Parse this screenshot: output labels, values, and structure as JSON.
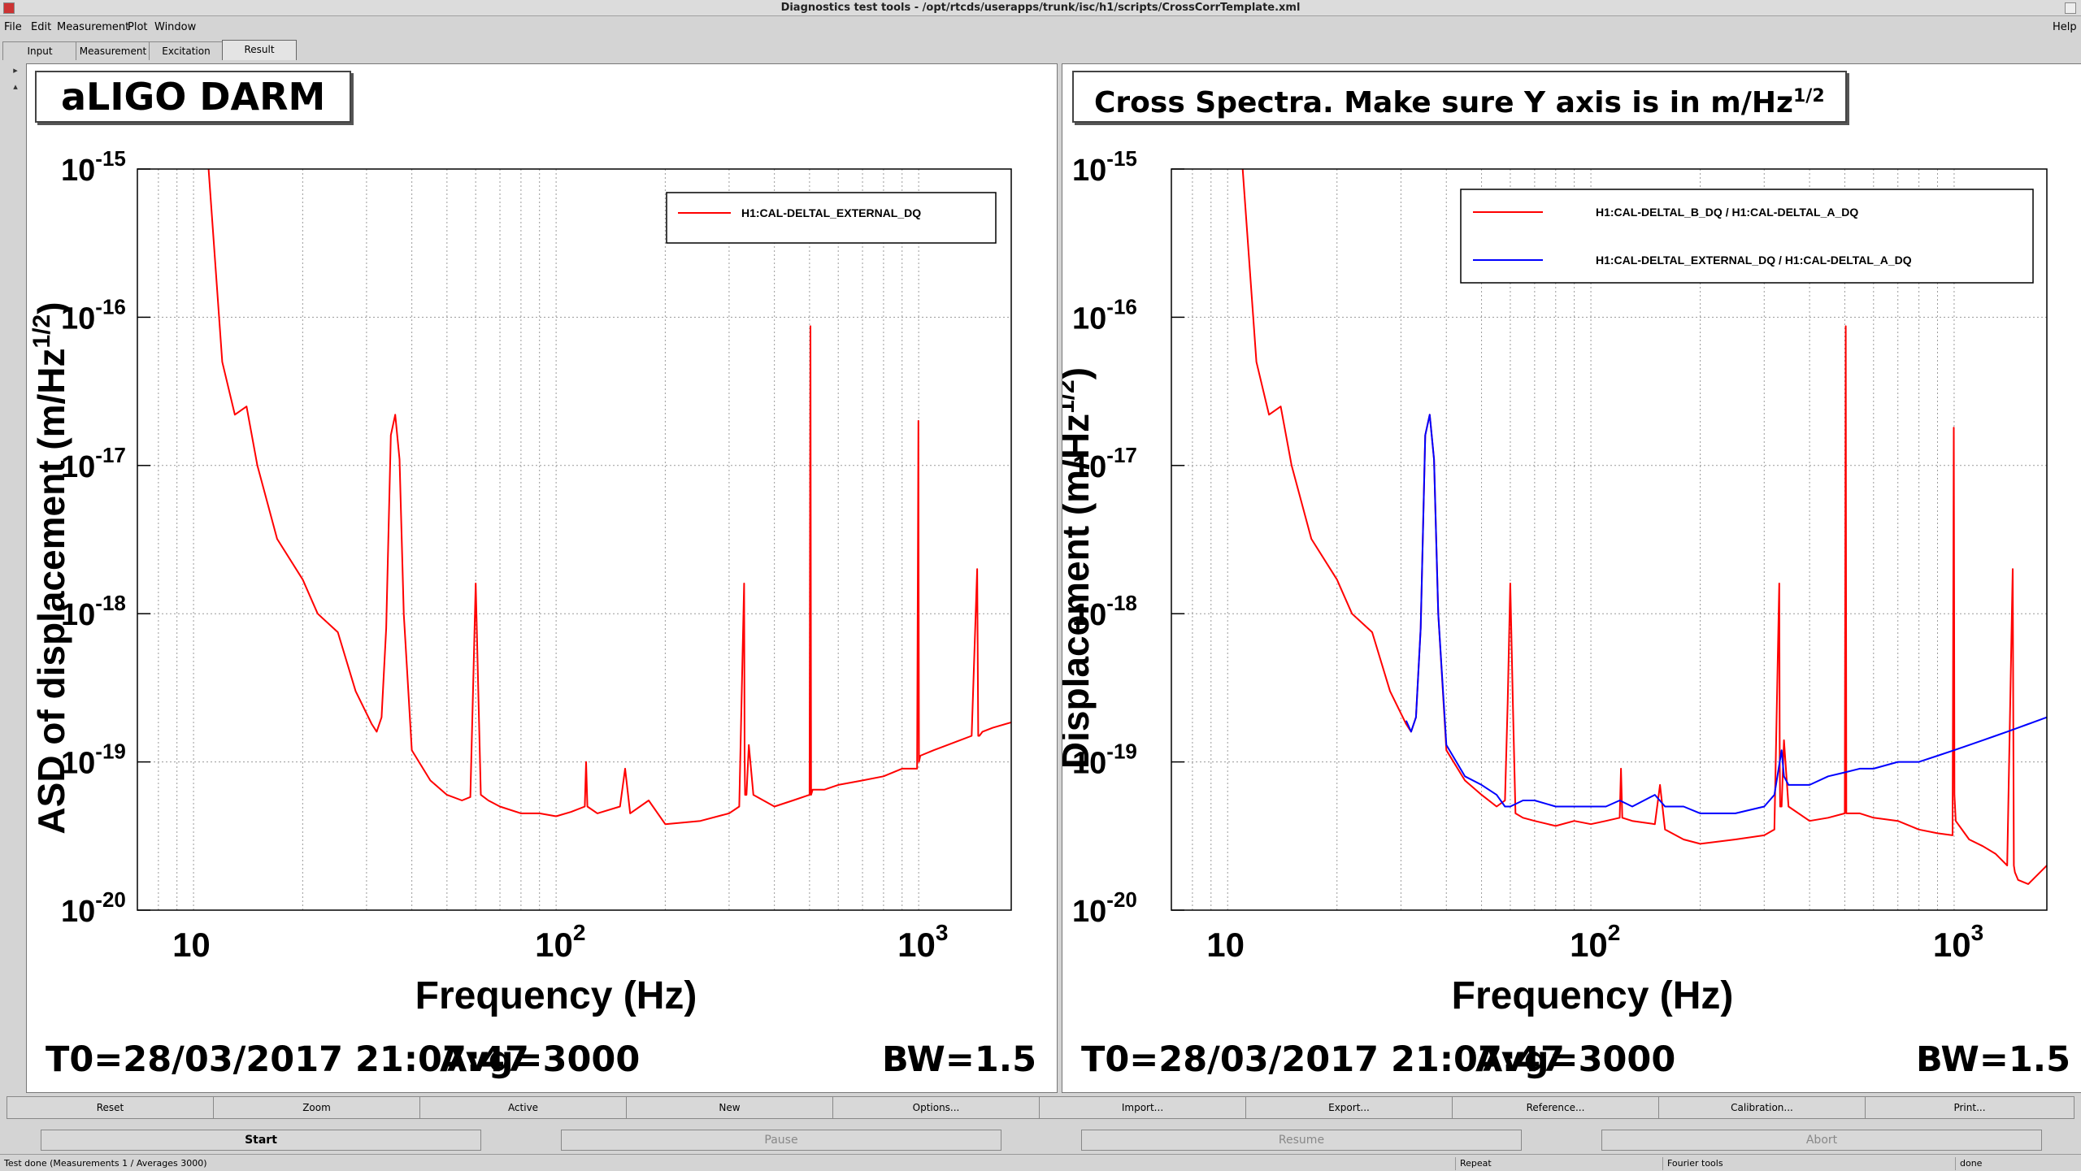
{
  "window": {
    "title": "Diagnostics test tools - /opt/rtcds/userapps/trunk/isc/h1/scripts/CrossCorrTemplate.xml"
  },
  "menu": {
    "file": "File",
    "edit": "Edit",
    "measurement": "Measurement",
    "plot": "Plot",
    "window": "Window",
    "help": "Help"
  },
  "tabs": {
    "input": "Input",
    "measurement": "Measurement",
    "excitation": "Excitation",
    "result": "Result"
  },
  "left_panel": {
    "title": "aLIGO DARM",
    "ylabel": "ASD of displacement (m/Hz",
    "ylabel_sup": "1/2",
    "ylabel_close": ")",
    "legend1": "H1:CAL-DELTAL_EXTERNAL_DQ",
    "footer_t0": "T0=28/03/2017 21:07:47",
    "footer_avg": "Avg=3000",
    "footer_bw": "BW=1.5"
  },
  "right_panel": {
    "title": "Cross Spectra. Make sure Y axis is in m/Hz",
    "title_sup": "1/2",
    "ylabel": "Displacement (m/Hz",
    "ylabel_sup": "1/2",
    "ylabel_close": ")",
    "legend1": "H1:CAL-DELTAL_B_DQ / H1:CAL-DELTAL_A_DQ",
    "legend2": "H1:CAL-DELTAL_EXTERNAL_DQ / H1:CAL-DELTAL_A_DQ",
    "footer_t0": "T0=28/03/2017 21:07:47",
    "footer_avg": "Avg=3000",
    "footer_bw": "BW=1.5"
  },
  "axes": {
    "xlabel": "Frequency (Hz)",
    "xticks": [
      {
        "base": "10",
        "exp": ""
      },
      {
        "base": "10",
        "exp": "2"
      },
      {
        "base": "10",
        "exp": "3"
      }
    ],
    "yticks": [
      {
        "base": "10",
        "exp": "-15"
      },
      {
        "base": "10",
        "exp": "-16"
      },
      {
        "base": "10",
        "exp": "-17"
      },
      {
        "base": "10",
        "exp": "-18"
      },
      {
        "base": "10",
        "exp": "-19"
      },
      {
        "base": "10",
        "exp": "-20"
      }
    ]
  },
  "buttons_row1": {
    "reset": "Reset",
    "zoom": "Zoom",
    "active": "Active",
    "new": "New",
    "options": "Options...",
    "import": "Import...",
    "export": "Export...",
    "reference": "Reference...",
    "calibration": "Calibration...",
    "print": "Print..."
  },
  "buttons_row2": {
    "start": "Start",
    "pause": "Pause",
    "resume": "Resume",
    "abort": "Abort"
  },
  "status": {
    "main": "Test done (Measurements 1 / Averages 3000)",
    "repeat": "Repeat",
    "fourier": "Fourier tools",
    "state": "done"
  },
  "colors": {
    "red": "#ff0000",
    "blue": "#0000ff"
  },
  "chart_data": [
    {
      "type": "line",
      "title": "aLIGO DARM",
      "xlabel": "Frequency (Hz)",
      "ylabel": "ASD of displacement (m/Hz^1/2)",
      "xscale": "log",
      "yscale": "log",
      "xlim": [
        7,
        1800
      ],
      "ylim": [
        1e-20,
        1e-15
      ],
      "grid": true,
      "legend": "top-right",
      "series": [
        {
          "name": "H1:CAL-DELTAL_EXTERNAL_DQ",
          "color": "#ff0000",
          "x": [
            11,
            12,
            13,
            14,
            15,
            17,
            20,
            22,
            25,
            28,
            31,
            32,
            33,
            34,
            35,
            36,
            37,
            38,
            40,
            45,
            50,
            55,
            58,
            59,
            60,
            61,
            62,
            65,
            70,
            80,
            90,
            100,
            110,
            120,
            121,
            122,
            130,
            150,
            155,
            160,
            180,
            200,
            250,
            300,
            320,
            330,
            331,
            332,
            335,
            340,
            350,
            400,
            450,
            500,
            503,
            505,
            510,
            550,
            600,
            700,
            800,
            900,
            990,
            998,
            1000,
            1002,
            1010,
            1100,
            1200,
            1300,
            1400,
            1450,
            1460,
            1470,
            1500,
            1600,
            1800
          ],
          "y": [
            1e-15,
            5e-17,
            2.2e-17,
            2.5e-17,
            1e-17,
            3.2e-18,
            1.7e-18,
            1e-18,
            7.5e-19,
            3e-19,
            1.8e-19,
            1.6e-19,
            2e-19,
            8e-19,
            1.6e-17,
            2.2e-17,
            1.1e-17,
            1e-18,
            1.2e-19,
            7.5e-20,
            6e-20,
            5.5e-20,
            5.8e-20,
            3e-19,
            1.6e-18,
            3e-19,
            6e-20,
            5.5e-20,
            5e-20,
            4.5e-20,
            4.5e-20,
            4.3e-20,
            4.6e-20,
            5e-20,
            1e-19,
            5e-20,
            4.5e-20,
            5e-20,
            9e-20,
            4.5e-20,
            5.5e-20,
            3.8e-20,
            4e-20,
            4.5e-20,
            5e-20,
            1.6e-18,
            1.1e-19,
            6e-20,
            6e-20,
            1.3e-19,
            6e-20,
            5e-20,
            5.5e-20,
            6e-20,
            8.7e-17,
            6e-20,
            6.5e-20,
            6.5e-20,
            7e-20,
            7.5e-20,
            8e-20,
            9e-20,
            9e-20,
            2e-17,
            1.5e-18,
            1e-19,
            1.1e-19,
            1.2e-19,
            1.3e-19,
            1.4e-19,
            1.5e-19,
            2e-18,
            1.5e-19,
            1.5e-19,
            1.6e-19,
            1.7e-19,
            1.85e-19
          ]
        }
      ]
    },
    {
      "type": "line",
      "title": "Cross Spectra. Make sure Y axis is in m/Hz^1/2",
      "xlabel": "Frequency (Hz)",
      "ylabel": "Displacement (m/Hz^1/2)",
      "xscale": "log",
      "yscale": "log",
      "xlim": [
        7,
        1800
      ],
      "ylim": [
        1e-20,
        1e-15
      ],
      "grid": true,
      "legend": "top-right",
      "series": [
        {
          "name": "H1:CAL-DELTAL_B_DQ / H1:CAL-DELTAL_A_DQ",
          "color": "#ff0000",
          "x": [
            11,
            12,
            13,
            14,
            15,
            17,
            20,
            22,
            25,
            28,
            31,
            32,
            33,
            34,
            35,
            36,
            37,
            38,
            40,
            45,
            50,
            55,
            58,
            59,
            60,
            61,
            62,
            65,
            70,
            80,
            90,
            100,
            110,
            120,
            121,
            122,
            130,
            150,
            155,
            160,
            180,
            200,
            250,
            300,
            320,
            330,
            331,
            332,
            335,
            340,
            350,
            400,
            450,
            500,
            503,
            505,
            510,
            550,
            600,
            700,
            800,
            900,
            990,
            998,
            1000,
            1002,
            1010,
            1100,
            1200,
            1300,
            1400,
            1450,
            1460,
            1470,
            1500,
            1600,
            1800
          ],
          "y": [
            1e-15,
            5e-17,
            2.2e-17,
            2.5e-17,
            1e-17,
            3.2e-18,
            1.7e-18,
            1e-18,
            7.5e-19,
            3e-19,
            1.8e-19,
            1.6e-19,
            2e-19,
            8e-19,
            1.6e-17,
            2.2e-17,
            1.1e-17,
            1e-18,
            1.2e-19,
            7.5e-20,
            6e-20,
            5e-20,
            5.5e-20,
            2.5e-19,
            1.6e-18,
            2.5e-19,
            4.5e-20,
            4.2e-20,
            4e-20,
            3.7e-20,
            4e-20,
            3.8e-20,
            4e-20,
            4.2e-20,
            9e-20,
            4.2e-20,
            4e-20,
            3.8e-20,
            7e-20,
            3.5e-20,
            3e-20,
            2.8e-20,
            3e-20,
            3.2e-20,
            3.5e-20,
            1.6e-18,
            1e-19,
            5e-20,
            5e-20,
            1.4e-19,
            5e-20,
            4e-20,
            4.2e-20,
            4.5e-20,
            8.7e-17,
            4.5e-20,
            4.5e-20,
            4.5e-20,
            4.2e-20,
            4e-20,
            3.5e-20,
            3.3e-20,
            3.2e-20,
            1.8e-17,
            1.5e-18,
            6e-20,
            4e-20,
            3e-20,
            2.7e-20,
            2.4e-20,
            2e-20,
            2e-18,
            2e-20,
            1.8e-20,
            1.6e-20,
            1.5e-20,
            2e-20
          ]
        },
        {
          "name": "H1:CAL-DELTAL_EXTERNAL_DQ / H1:CAL-DELTAL_A_DQ",
          "color": "#0000ff",
          "x": [
            31,
            32,
            33,
            34,
            35,
            36,
            37,
            38,
            40,
            45,
            50,
            55,
            58,
            60,
            65,
            70,
            80,
            90,
            100,
            110,
            120,
            130,
            150,
            160,
            180,
            200,
            250,
            300,
            320,
            335,
            340,
            350,
            400,
            450,
            500,
            550,
            600,
            700,
            800,
            900,
            1000,
            1100,
            1200,
            1300,
            1400,
            1500,
            1600,
            1800
          ],
          "y": [
            1.9e-19,
            1.6e-19,
            2e-19,
            8e-19,
            1.6e-17,
            2.2e-17,
            1.1e-17,
            1e-18,
            1.3e-19,
            8e-20,
            7e-20,
            6e-20,
            5e-20,
            5e-20,
            5.5e-20,
            5.5e-20,
            5e-20,
            5e-20,
            5e-20,
            5e-20,
            5.5e-20,
            5e-20,
            6e-20,
            5e-20,
            5e-20,
            4.5e-20,
            4.5e-20,
            5e-20,
            6e-20,
            1.2e-19,
            8e-20,
            7e-20,
            7e-20,
            8e-20,
            8.5e-20,
            9e-20,
            9e-20,
            1e-19,
            1e-19,
            1.1e-19,
            1.2e-19,
            1.3e-19,
            1.4e-19,
            1.5e-19,
            1.6e-19,
            1.7e-19,
            1.8e-19,
            2e-19
          ]
        }
      ]
    }
  ]
}
